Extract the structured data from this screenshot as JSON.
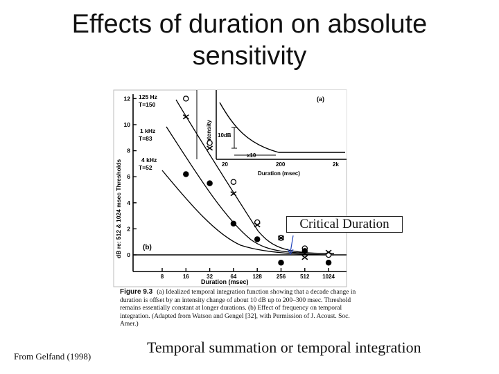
{
  "slide": {
    "title_line1": "Effects of duration on absolute",
    "title_line2": "sensitivity",
    "subtitle": "Temporal summation or temporal integration",
    "source": "From Gelfand (1998)",
    "annotation": "Critical Duration"
  },
  "figure": {
    "caption_label": "Figure 9.3",
    "caption_text": "(a) Idealized temporal integration function showing that a decade change in duration is offset by an intensity change of about 10 dB up to 200–300 msec. Threshold remains essentially constant at longer durations. (b) Effect of frequency on temporal integration. (Adapted from Watson and Gengel [32], with Permission of J. Acoust. Soc. Amer.)",
    "panel_b_label": "(b)",
    "panel_a_label": "(a)",
    "y_axis_label": "dB re: 512 & 1024 msec Thresholds",
    "x_axis_label": "Duration (msec)",
    "y_ticks": [
      "12",
      "10",
      "8",
      "6",
      "4",
      "2",
      "0"
    ],
    "x_ticks": [
      "8",
      "16",
      "32",
      "64",
      "128",
      "256",
      "512",
      "1024"
    ],
    "series_labels": [
      {
        "line1": "125 Hz",
        "line2": "T=150"
      },
      {
        "line1": "1 kHz",
        "line2": "T=83"
      },
      {
        "line1": "4 kHz",
        "line2": "T=52"
      }
    ],
    "inset": {
      "y_label": "Intensity",
      "x_label": "Duration (msec)",
      "x_ticks": [
        "20",
        "200",
        "2k"
      ],
      "label_10db": "10dB",
      "label_x10": "x10"
    }
  },
  "chart_data": {
    "type": "line",
    "xscale": "log",
    "x": [
      8,
      16,
      32,
      64,
      128,
      256,
      512,
      1024
    ],
    "ylim": [
      0,
      12
    ],
    "series": [
      {
        "name": "125 Hz",
        "marker": "circle-open",
        "x": [
          16,
          32,
          64,
          128,
          256,
          512,
          1024
        ],
        "values": [
          12,
          8.6,
          5.6,
          2.5,
          1.3,
          0.5,
          0
        ]
      },
      {
        "name": "1 kHz",
        "marker": "x",
        "x": [
          16,
          32,
          64,
          128,
          256,
          512,
          1024
        ],
        "values": [
          10.6,
          8.2,
          4.7,
          2.3,
          1.3,
          -0.2,
          0.2
        ]
      },
      {
        "name": "4 kHz",
        "marker": "circle-filled",
        "x": [
          16,
          32,
          64,
          128,
          256,
          512,
          1024
        ],
        "values": [
          6.2,
          5.5,
          2.4,
          1.2,
          -0.6,
          0.3,
          -0.6
        ]
      }
    ],
    "inset": {
      "type": "line",
      "x": [
        20,
        200,
        2000
      ],
      "xlabel": "Duration (msec)",
      "ylabel": "Intensity"
    }
  }
}
